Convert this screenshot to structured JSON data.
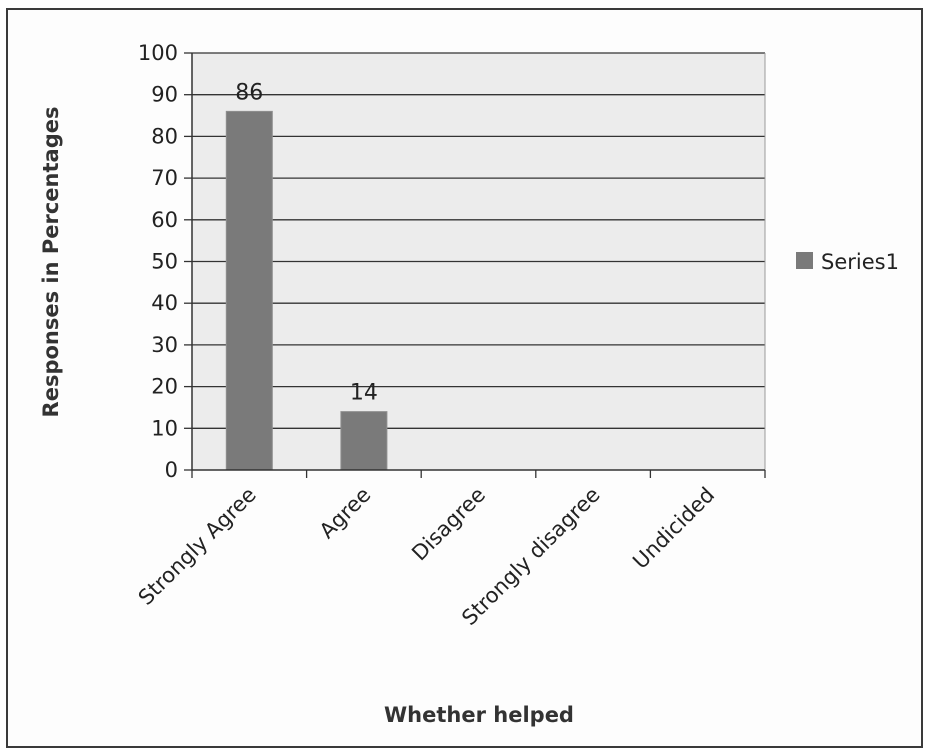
{
  "chart_data": {
    "type": "bar",
    "title": "",
    "xlabel": "Whether helped",
    "ylabel": "Responses in Percentages",
    "categories": [
      "Strongly Agree",
      "Agree",
      "Disagree",
      "Strongly disagree",
      "Undicided"
    ],
    "series": [
      {
        "name": "Series1",
        "values": [
          86,
          14,
          0,
          0,
          0
        ],
        "color": "#7a7a7a"
      }
    ],
    "data_labels": [
      "86",
      "14",
      "",
      "",
      ""
    ],
    "ylim": [
      0,
      100
    ],
    "yticks": [
      0,
      10,
      20,
      30,
      40,
      50,
      60,
      70,
      80,
      90,
      100
    ],
    "ytick_labels": [
      "0",
      "10",
      "20",
      "30",
      "40",
      "50",
      "60",
      "70",
      "80",
      "90",
      "100"
    ],
    "grid": true,
    "legend": "right",
    "colors": {
      "plot_background": "#ececec",
      "gridline": "#333333",
      "bar": "#7a7a7a",
      "bar_edge": "#8e8e8e"
    }
  }
}
